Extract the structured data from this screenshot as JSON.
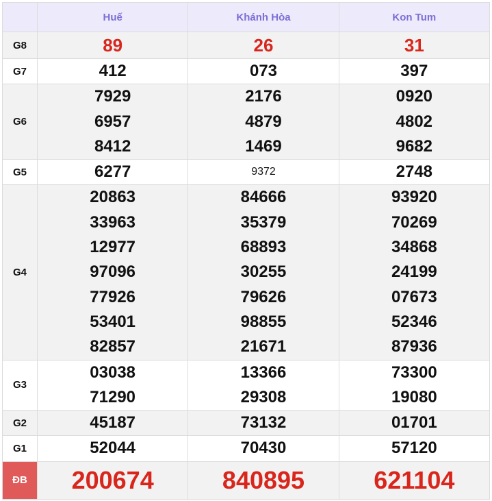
{
  "header": {
    "provinces": [
      "Huế",
      "Khánh Hòa",
      "Kon Tum"
    ]
  },
  "rows": [
    {
      "label": "G8",
      "values": [
        [
          "89"
        ],
        [
          "26"
        ],
        [
          "31"
        ]
      ]
    },
    {
      "label": "G7",
      "values": [
        [
          "412"
        ],
        [
          "073"
        ],
        [
          "397"
        ]
      ]
    },
    {
      "label": "G6",
      "values": [
        [
          "7929",
          "6957",
          "8412"
        ],
        [
          "2176",
          "4879",
          "1469"
        ],
        [
          "0920",
          "4802",
          "9682"
        ]
      ]
    },
    {
      "label": "G5",
      "values": [
        [
          "6277"
        ],
        [
          "9372"
        ],
        [
          "2748"
        ]
      ]
    },
    {
      "label": "G4",
      "values": [
        [
          "20863",
          "33963",
          "12977",
          "97096",
          "77926",
          "53401",
          "82857"
        ],
        [
          "84666",
          "35379",
          "68893",
          "30255",
          "79626",
          "98855",
          "21671"
        ],
        [
          "93920",
          "70269",
          "34868",
          "24199",
          "07673",
          "52346",
          "87936"
        ]
      ]
    },
    {
      "label": "G3",
      "values": [
        [
          "03038",
          "71290"
        ],
        [
          "13366",
          "29308"
        ],
        [
          "73300",
          "19080"
        ]
      ]
    },
    {
      "label": "G2",
      "values": [
        [
          "45187"
        ],
        [
          "73132"
        ],
        [
          "01701"
        ]
      ]
    },
    {
      "label": "G1",
      "values": [
        [
          "52044"
        ],
        [
          "70430"
        ],
        [
          "57120"
        ]
      ]
    },
    {
      "label": "ĐB",
      "values": [
        [
          "200674"
        ],
        [
          "840895"
        ],
        [
          "621104"
        ]
      ]
    }
  ],
  "colors": {
    "header_text": "#7b6fd6",
    "prize_red": "#d9261c",
    "db_label_bg": "#e05a5a"
  }
}
